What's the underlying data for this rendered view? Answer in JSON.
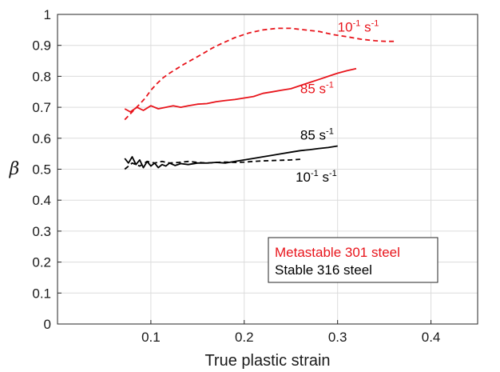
{
  "chart_data": {
    "type": "line",
    "xlabel": "True plastic strain",
    "ylabel": "β",
    "xlim": [
      0,
      0.45
    ],
    "ylim": [
      0,
      1
    ],
    "x_ticks": [
      "0.1",
      "0.2",
      "0.3",
      "0.4"
    ],
    "x_tick_values": [
      0.1,
      0.2,
      0.3,
      0.4
    ],
    "y_ticks": [
      "0",
      "0.1",
      "0.2",
      "0.3",
      "0.4",
      "0.5",
      "0.6",
      "0.7",
      "0.8",
      "0.9",
      "1"
    ],
    "y_tick_values": [
      0,
      0.1,
      0.2,
      0.3,
      0.4,
      0.5,
      0.6,
      0.7,
      0.8,
      0.9,
      1
    ],
    "grid": true,
    "legend": {
      "placement": "bottom-right",
      "entries": [
        {
          "text": "Metastable 301 steel",
          "color": "#e8141b"
        },
        {
          "text": "Stable 316 steel",
          "color": "#000000"
        }
      ]
    },
    "annotations": [
      {
        "base": "10",
        "sup": "-1",
        "unit": " s",
        "unit_sup": "-1",
        "color": "#e8141b",
        "x": 0.3,
        "y": 0.945
      },
      {
        "base": "85 s",
        "sup": "-1",
        "unit": "",
        "unit_sup": "",
        "color": "#e8141b",
        "x": 0.26,
        "y": 0.745
      },
      {
        "base": "85 s",
        "sup": "-1",
        "unit": "",
        "unit_sup": "",
        "color": "#000000",
        "x": 0.26,
        "y": 0.595
      },
      {
        "base": "10",
        "sup": "-1",
        "unit": " s",
        "unit_sup": "-1",
        "color": "#000000",
        "x": 0.255,
        "y": 0.46
      }
    ],
    "series": [
      {
        "steel": "Metastable 301 steel",
        "rate": "10^-1 s^-1",
        "color": "#e8141b",
        "dash": true,
        "x": [
          0.072,
          0.08,
          0.088,
          0.094,
          0.1,
          0.106,
          0.113,
          0.12,
          0.128,
          0.136,
          0.145,
          0.155,
          0.165,
          0.175,
          0.19,
          0.205,
          0.22,
          0.235,
          0.25,
          0.265,
          0.28,
          0.295,
          0.31,
          0.325,
          0.34,
          0.352,
          0.362
        ],
        "y": [
          0.66,
          0.685,
          0.71,
          0.73,
          0.755,
          0.775,
          0.795,
          0.81,
          0.825,
          0.84,
          0.855,
          0.872,
          0.89,
          0.905,
          0.925,
          0.94,
          0.95,
          0.955,
          0.955,
          0.95,
          0.945,
          0.935,
          0.928,
          0.92,
          0.915,
          0.913,
          0.913
        ]
      },
      {
        "steel": "Metastable 301 steel",
        "rate": "85 s^-1",
        "color": "#e8141b",
        "dash": false,
        "x": [
          0.072,
          0.078,
          0.085,
          0.092,
          0.1,
          0.108,
          0.116,
          0.124,
          0.132,
          0.14,
          0.15,
          0.16,
          0.17,
          0.18,
          0.19,
          0.2,
          0.21,
          0.22,
          0.23,
          0.24,
          0.25,
          0.26,
          0.27,
          0.28,
          0.29,
          0.3,
          0.31,
          0.32
        ],
        "y": [
          0.695,
          0.685,
          0.7,
          0.69,
          0.705,
          0.695,
          0.7,
          0.705,
          0.7,
          0.705,
          0.71,
          0.712,
          0.718,
          0.722,
          0.725,
          0.73,
          0.735,
          0.745,
          0.75,
          0.755,
          0.76,
          0.77,
          0.78,
          0.79,
          0.8,
          0.81,
          0.818,
          0.825
        ]
      },
      {
        "steel": "Stable 316 steel",
        "rate": "85 s^-1",
        "color": "#000000",
        "dash": false,
        "x": [
          0.072,
          0.076,
          0.08,
          0.084,
          0.088,
          0.092,
          0.096,
          0.1,
          0.104,
          0.108,
          0.112,
          0.116,
          0.12,
          0.126,
          0.132,
          0.14,
          0.15,
          0.16,
          0.17,
          0.18,
          0.19,
          0.2,
          0.21,
          0.22,
          0.23,
          0.24,
          0.25,
          0.26,
          0.27,
          0.28,
          0.29,
          0.3
        ],
        "y": [
          0.535,
          0.52,
          0.54,
          0.515,
          0.53,
          0.505,
          0.525,
          0.51,
          0.52,
          0.505,
          0.515,
          0.51,
          0.52,
          0.512,
          0.518,
          0.515,
          0.52,
          0.52,
          0.522,
          0.52,
          0.525,
          0.53,
          0.535,
          0.54,
          0.545,
          0.55,
          0.555,
          0.56,
          0.563,
          0.567,
          0.57,
          0.575
        ]
      },
      {
        "steel": "Stable 316 steel",
        "rate": "10^-1 s^-1",
        "color": "#000000",
        "dash": true,
        "x": [
          0.072,
          0.08,
          0.088,
          0.096,
          0.104,
          0.112,
          0.12,
          0.13,
          0.14,
          0.15,
          0.16,
          0.17,
          0.18,
          0.19,
          0.2,
          0.21,
          0.22,
          0.23,
          0.24,
          0.25,
          0.26
        ],
        "y": [
          0.5,
          0.52,
          0.51,
          0.525,
          0.52,
          0.525,
          0.52,
          0.522,
          0.525,
          0.522,
          0.52,
          0.522,
          0.523,
          0.522,
          0.523,
          0.525,
          0.527,
          0.528,
          0.529,
          0.53,
          0.532
        ]
      }
    ]
  }
}
